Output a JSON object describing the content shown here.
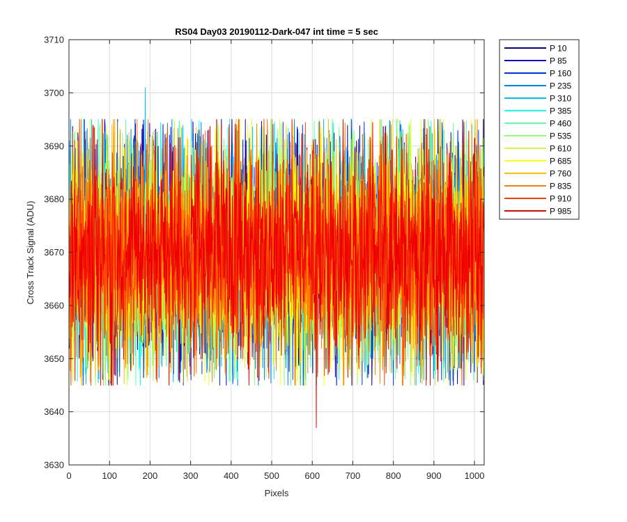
{
  "chart_data": {
    "type": "line",
    "title": "RS04 Day03 20190112-Dark-047 int time = 5 sec",
    "xlabel": "Pixels",
    "ylabel": "Cross Track Signal (ADU)",
    "xlim": [
      0,
      1024
    ],
    "ylim": [
      3630,
      3710
    ],
    "xticks": [
      "0",
      "100",
      "200",
      "300",
      "400",
      "500",
      "600",
      "700",
      "800",
      "900",
      "1000"
    ],
    "yticks": [
      "3630",
      "3640",
      "3650",
      "3660",
      "3670",
      "3680",
      "3690",
      "3700",
      "3710"
    ],
    "grid": true,
    "legend_position": "outside-top-right",
    "series": [
      {
        "name": "P 10",
        "color": "#00008f"
      },
      {
        "name": "P 85",
        "color": "#0000df"
      },
      {
        "name": "P 160",
        "color": "#0030ff"
      },
      {
        "name": "P 235",
        "color": "#0080ff"
      },
      {
        "name": "P 310",
        "color": "#00bfff"
      },
      {
        "name": "P 385",
        "color": "#10ffef"
      },
      {
        "name": "P 460",
        "color": "#60ffa0"
      },
      {
        "name": "P 535",
        "color": "#8fff70"
      },
      {
        "name": "P 610",
        "color": "#cfff30"
      },
      {
        "name": "P 685",
        "color": "#ffff00"
      },
      {
        "name": "P 760",
        "color": "#ffbf00"
      },
      {
        "name": "P 835",
        "color": "#ff8000"
      },
      {
        "name": "P 910",
        "color": "#ff4000"
      },
      {
        "name": "P 985",
        "color": "#ef0000"
      }
    ],
    "typical_range": [
      3645,
      3695
    ],
    "notable_points": [
      {
        "series": "P 310",
        "x": 188,
        "y": 3701
      },
      {
        "series": "P 985",
        "x": 610,
        "y": 3637
      }
    ]
  }
}
